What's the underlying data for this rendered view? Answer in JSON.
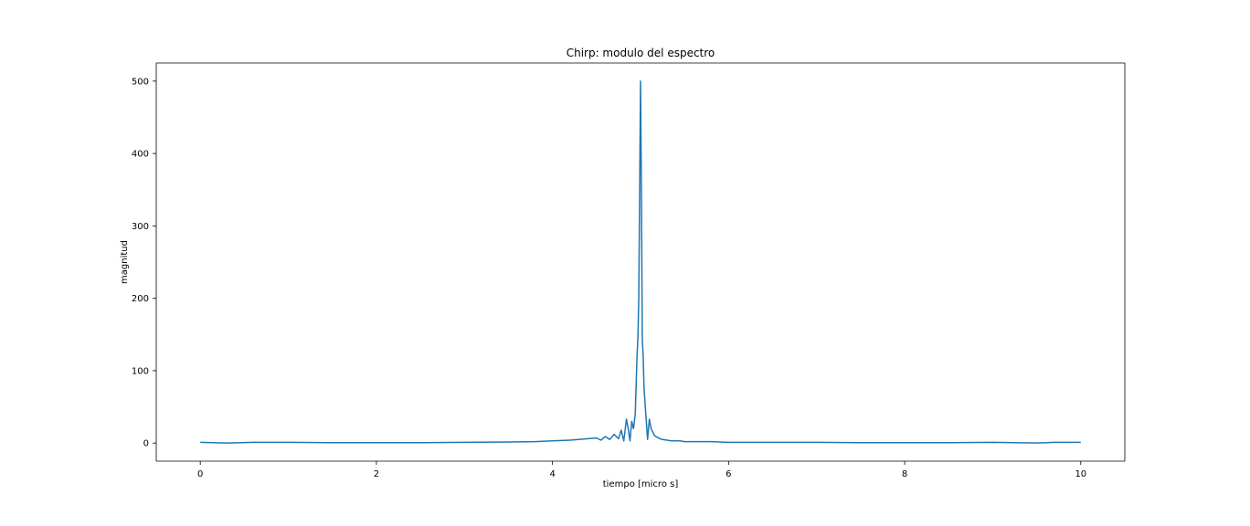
{
  "chart_data": {
    "type": "line",
    "title": "Chirp: modulo del espectro",
    "xlabel": "tiempo [micro s]",
    "ylabel": "magnitud",
    "xlim": [
      -0.5,
      10.5
    ],
    "ylim": [
      -25,
      525
    ],
    "xticks": [
      0,
      2,
      4,
      6,
      8,
      10
    ],
    "yticks": [
      0,
      100,
      200,
      300,
      400,
      500
    ],
    "grid": false,
    "series": [
      {
        "color": "#1f77b4",
        "x": [
          0.0,
          0.3,
          0.6,
          1.0,
          1.5,
          2.0,
          2.5,
          3.0,
          3.5,
          3.8,
          4.0,
          4.2,
          4.4,
          4.5,
          4.55,
          4.6,
          4.65,
          4.7,
          4.75,
          4.78,
          4.81,
          4.84,
          4.86,
          4.88,
          4.9,
          4.92,
          4.94,
          4.96,
          4.97,
          4.98,
          4.99,
          5.0,
          5.01,
          5.02,
          5.03,
          5.04,
          5.06,
          5.08,
          5.1,
          5.12,
          5.14,
          5.16,
          5.19,
          5.22,
          5.25,
          5.3,
          5.35,
          5.4,
          5.45,
          5.5,
          5.6,
          5.8,
          6.0,
          6.2,
          6.5,
          7.0,
          7.5,
          8.0,
          8.5,
          9.0,
          9.5,
          9.7,
          10.0
        ],
        "y": [
          1,
          0,
          1,
          1,
          0.5,
          0.5,
          0.5,
          1,
          1.5,
          2,
          3,
          4,
          6,
          7,
          4,
          9,
          5,
          12,
          6,
          18,
          3,
          33,
          20,
          3,
          30,
          20,
          40,
          120,
          145,
          200,
          350,
          500,
          350,
          145,
          120,
          75,
          40,
          5,
          33,
          20,
          15,
          10,
          8,
          6,
          5,
          4,
          3,
          3,
          3,
          2,
          2,
          2,
          1,
          1,
          1,
          1,
          0.5,
          0.5,
          0.5,
          1,
          0,
          1,
          1
        ]
      }
    ]
  }
}
